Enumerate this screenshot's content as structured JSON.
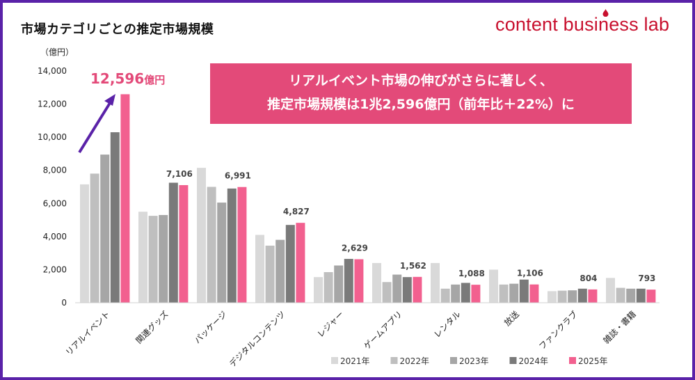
{
  "title": "市場カテゴリごとの推定市場規模",
  "brand": "content business lab",
  "callout": {
    "line1": "リアルイベント市場の伸びがさらに著しく、",
    "line2": "推定市場規模は1兆2,596億円（前年比＋22%）に"
  },
  "highlight": {
    "value": "12,596",
    "unit": "億円"
  },
  "colors": {
    "accent": "#5a22a8",
    "brand": "#c8102e",
    "callout_bg": "#e34a79",
    "highlight_text": "#e34a79"
  },
  "chart_data": {
    "type": "bar",
    "ylabel": "（億円）",
    "ylim": [
      0,
      14000
    ],
    "yticks": [
      0,
      2000,
      4000,
      6000,
      8000,
      10000,
      12000,
      14000
    ],
    "ytick_labels": [
      "0",
      "2,000",
      "4,000",
      "6,000",
      "8,000",
      "10,000",
      "12,000",
      "14,000"
    ],
    "grid": false,
    "legend_position": "bottom",
    "categories": [
      "リアルイベント",
      "関連グッズ",
      "パッケージ",
      "デジタルコンテンツ",
      "レジャー",
      "ゲームアプリ",
      "レンタル",
      "放送",
      "ファンクラブ",
      "雑誌・書籍"
    ],
    "series": [
      {
        "name": "2021年",
        "color": "#d9d9d9",
        "values": [
          7150,
          5500,
          8150,
          4100,
          1550,
          2400,
          2400,
          2000,
          700,
          1500
        ]
      },
      {
        "name": "2022年",
        "color": "#bfbfbf",
        "values": [
          7800,
          5250,
          7000,
          3450,
          1850,
          1250,
          850,
          1100,
          730,
          900
        ]
      },
      {
        "name": "2023年",
        "color": "#a6a6a6",
        "values": [
          8950,
          5300,
          6050,
          3800,
          2250,
          1700,
          1100,
          1150,
          750,
          850
        ]
      },
      {
        "name": "2024年",
        "color": "#7a7a7a",
        "values": [
          10300,
          7250,
          6900,
          4700,
          2650,
          1550,
          1200,
          1400,
          850,
          850
        ]
      },
      {
        "name": "2025年",
        "color": "#f2608f",
        "values": [
          12596,
          7106,
          6991,
          4827,
          2629,
          1562,
          1088,
          1106,
          804,
          793
        ]
      }
    ],
    "data_labels": [
      "",
      "7,106",
      "6,991",
      "4,827",
      "2,629",
      "1,562",
      "1,088",
      "1,106",
      "804",
      "793"
    ]
  }
}
